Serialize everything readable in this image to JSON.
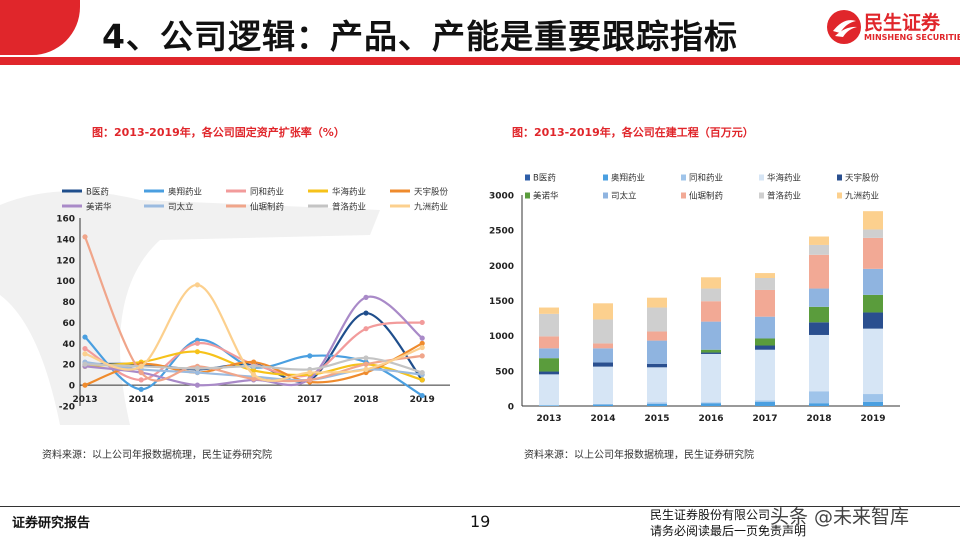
{
  "header": {
    "title": "4、公司逻辑：产品、产能是重要跟踪指标",
    "logo_cn": "民生证券",
    "logo_en": "MINSHENG SECURITIES",
    "accent": "#e0262b"
  },
  "left_chart": {
    "title": "图：2013-2019年，各公司固定资产扩张率（%）",
    "source": "资料来源：以上公司年报数据梳理，民生证券研究院"
  },
  "right_chart": {
    "title": "图：2013-2019年，各公司在建工程（百万元）",
    "source": "资料来源：以上公司年报数据梳理，民生证券研究院"
  },
  "footer": {
    "left": "证券研究报告",
    "page": "19",
    "right_line1": "民生证券股份有限公司",
    "right_line2": "请务必阅读最后一页免责声明",
    "watermark": "头条 @未来智库"
  },
  "chart_data": [
    {
      "type": "line",
      "x": [
        "2013",
        "2014",
        "2015",
        "2016",
        "2017",
        "2018",
        "2019"
      ],
      "ylim": [
        -20,
        160
      ],
      "yticks": [
        "-20",
        "0",
        "20",
        "40",
        "60",
        "80",
        "100",
        "120",
        "140",
        "160"
      ],
      "series": [
        {
          "name": "B医药",
          "color": "#1f4e8c",
          "values": [
            20,
            20,
            15,
            20,
            5,
            69,
            5
          ]
        },
        {
          "name": "奥翔药业",
          "color": "#4a9fe0",
          "values": [
            46,
            -4,
            43,
            17,
            28,
            22,
            -10
          ]
        },
        {
          "name": "同和药业",
          "color": "#f29b9b",
          "values": [
            35,
            5,
            40,
            20,
            10,
            54,
            60
          ]
        },
        {
          "name": "华海药业",
          "color": "#f6c21a",
          "values": [
            18,
            22,
            32,
            14,
            10,
            20,
            5
          ]
        },
        {
          "name": "天宇股份",
          "color": "#ef8b2d",
          "values": [
            0,
            20,
            12,
            22,
            3,
            12,
            40
          ]
        },
        {
          "name": "美诺华",
          "color": "#a98ac8",
          "values": [
            18,
            12,
            0,
            5,
            6,
            84,
            45
          ]
        },
        {
          "name": "司太立",
          "color": "#9bbbe0",
          "values": [
            22,
            15,
            12,
            8,
            5,
            15,
            10
          ]
        },
        {
          "name": "仙琚制药",
          "color": "#f0a58a",
          "values": [
            142,
            12,
            18,
            6,
            5,
            20,
            28
          ]
        },
        {
          "name": "普洛药业",
          "color": "#c4c4c4",
          "values": [
            20,
            18,
            16,
            18,
            15,
            26,
            12
          ]
        },
        {
          "name": "九洲药业",
          "color": "#fcd08e",
          "values": [
            30,
            18,
            96,
            10,
            12,
            15,
            36
          ]
        }
      ]
    },
    {
      "type": "bar",
      "stacked": true,
      "categories": [
        "2013",
        "2014",
        "2015",
        "2016",
        "2017",
        "2018",
        "2019"
      ],
      "ylim": [
        0,
        3000
      ],
      "yticks": [
        "0",
        "500",
        "1000",
        "1500",
        "2000",
        "2500",
        "3000"
      ],
      "series": [
        {
          "name": "B医药",
          "color": "#2e5ea8",
          "values": [
            0,
            0,
            0,
            0,
            0,
            0,
            0
          ]
        },
        {
          "name": "奥翔药业",
          "color": "#4a9fe0",
          "values": [
            10,
            20,
            30,
            40,
            60,
            40,
            60
          ]
        },
        {
          "name": "同和药业",
          "color": "#9fc4ea",
          "values": [
            0,
            10,
            20,
            10,
            20,
            170,
            110
          ]
        },
        {
          "name": "华海药业",
          "color": "#d6e5f5",
          "values": [
            440,
            530,
            500,
            690,
            720,
            800,
            930
          ]
        },
        {
          "name": "天宇股份",
          "color": "#2a4f8f",
          "values": [
            40,
            60,
            50,
            20,
            60,
            180,
            230
          ]
        },
        {
          "name": "美诺华",
          "color": "#5a9c3c",
          "values": [
            190,
            0,
            0,
            40,
            100,
            220,
            250
          ]
        },
        {
          "name": "司太立",
          "color": "#8fb4e0",
          "values": [
            140,
            200,
            330,
            400,
            310,
            260,
            370
          ]
        },
        {
          "name": "仙琚制药",
          "color": "#f2a995",
          "values": [
            170,
            70,
            130,
            290,
            380,
            480,
            440
          ]
        },
        {
          "name": "普洛药业",
          "color": "#cfcfcf",
          "values": [
            320,
            340,
            340,
            180,
            170,
            140,
            120
          ]
        },
        {
          "name": "九洲药业",
          "color": "#fcd08e",
          "values": [
            90,
            230,
            140,
            160,
            70,
            120,
            260
          ]
        }
      ]
    }
  ]
}
